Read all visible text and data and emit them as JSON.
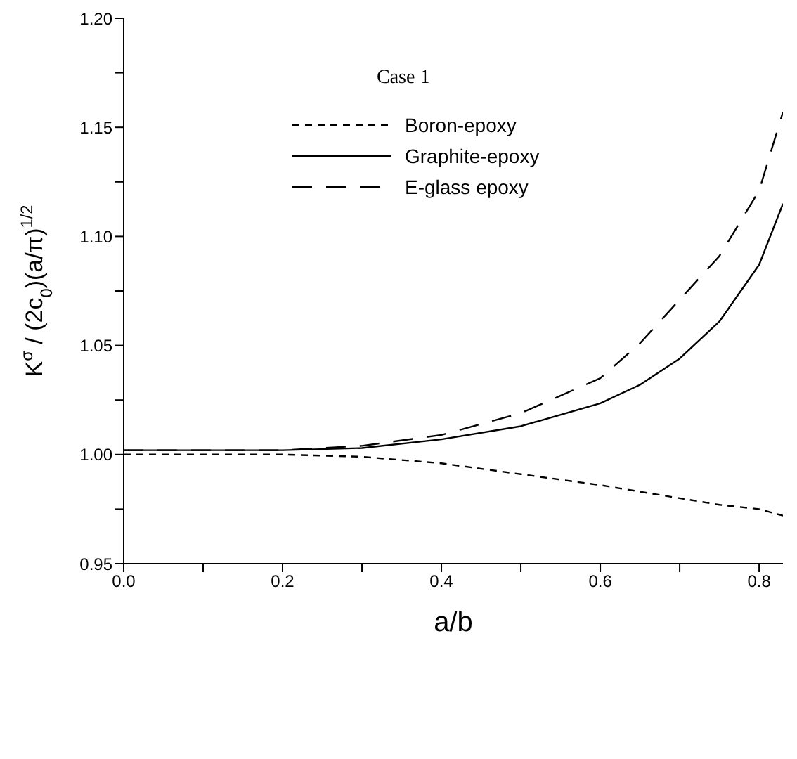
{
  "chart_data": {
    "type": "line",
    "xlabel": "a/b",
    "ylabel": "K$^{σ}$ / (2c$_{0}$)(a/π)$^{1/2}$",
    "annotations": [
      "Case 1"
    ],
    "x": [
      0,
      0.1,
      0.2,
      0.3,
      0.4,
      0.5,
      0.6,
      0.65,
      0.7,
      0.75,
      0.8,
      0.83
    ],
    "series": [
      {
        "name": "Boron-epoxy",
        "color": "#000000",
        "line_style": "dotted",
        "values": [
          1.0,
          1.0,
          1.0,
          0.999,
          0.996,
          0.991,
          0.986,
          0.983,
          0.98,
          0.977,
          0.975,
          0.972
        ]
      },
      {
        "name": "Graphite-epoxy",
        "color": "#000000",
        "line_style": "solid",
        "values": [
          1.002,
          1.002,
          1.002,
          1.003,
          1.007,
          1.013,
          1.0235,
          1.032,
          1.044,
          1.061,
          1.087,
          1.115
        ]
      },
      {
        "name": "E-glass epoxy",
        "color": "#000000",
        "line_style": "dashed",
        "values": [
          1.002,
          1.002,
          1.002,
          1.004,
          1.009,
          1.019,
          1.035,
          1.051,
          1.071,
          1.091,
          1.121,
          1.157
        ]
      }
    ],
    "xlim": [
      0,
      0.83
    ],
    "xticks": [
      {
        "value": 0,
        "label": "0.0"
      },
      {
        "value": 0.1,
        "label": null
      },
      0.2,
      {
        "value": 0.3,
        "label": null
      },
      0.4,
      {
        "value": 0.5,
        "label": null
      },
      0.6,
      {
        "value": 0.7,
        "label": null
      },
      0.8
    ],
    "ylim": [
      0.95,
      1.2
    ],
    "yticks": [
      0.95,
      {
        "value": 0.975,
        "label": null
      },
      {
        "value": 1.0,
        "label": "1.00"
      },
      {
        "value": 1.025,
        "label": null
      },
      1.05,
      {
        "value": 1.075,
        "label": null
      },
      {
        "value": 1.1,
        "label": "1.10"
      },
      {
        "value": 1.125,
        "label": null
      },
      1.15,
      {
        "value": 1.175,
        "label": null
      },
      {
        "value": 1.2,
        "label": "1.20"
      }
    ],
    "grid": false,
    "legend": "top",
    "marker": "none"
  }
}
